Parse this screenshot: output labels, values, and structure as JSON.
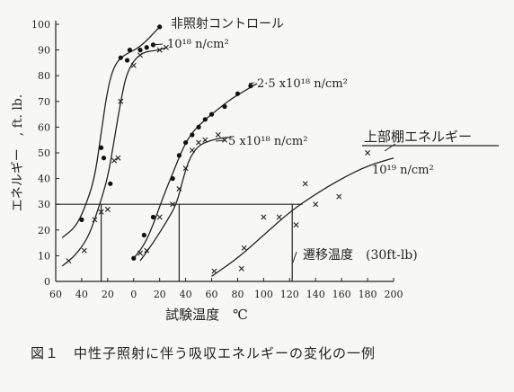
{
  "caption": "図１　中性子照射に伴う吸収エネルギーの変化の一例",
  "chart_data": {
    "type": "line",
    "ylabel": "エネルギー　, ft. lb.",
    "xlabel": "試験温度　℃",
    "x_ticks": [
      "60",
      "40",
      "20",
      "0",
      "20",
      "40",
      "60",
      "80",
      "100",
      "120",
      "140",
      "160",
      "180",
      "200"
    ],
    "x_ticks_value": [
      -60,
      -40,
      -20,
      0,
      20,
      40,
      60,
      80,
      100,
      120,
      140,
      160,
      180,
      200
    ],
    "y_ticks": [
      0,
      10,
      20,
      30,
      40,
      50,
      60,
      70,
      80,
      90,
      100
    ],
    "xlim": [
      -60,
      200
    ],
    "ylim": [
      0,
      100
    ],
    "grid": false,
    "reference_line": {
      "y": 30,
      "label": "遷移温度　(30ft-lb)"
    },
    "upper_shelf_label": "上部棚エネルギー",
    "series": [
      {
        "name": "非照射コントロール",
        "marker": "dot",
        "points": [
          [
            -40,
            24
          ],
          [
            -25,
            52
          ],
          [
            -23,
            48
          ],
          [
            -18,
            38
          ],
          [
            -10,
            87
          ],
          [
            -5,
            86
          ],
          [
            -3,
            90
          ],
          [
            5,
            90
          ],
          [
            10,
            91
          ],
          [
            15,
            92
          ],
          [
            20,
            99
          ]
        ],
        "curve": [
          [
            -55,
            17
          ],
          [
            -45,
            21
          ],
          [
            -38,
            28
          ],
          [
            -30,
            40
          ],
          [
            -25,
            58
          ],
          [
            -20,
            75
          ],
          [
            -15,
            84
          ],
          [
            -8,
            88
          ],
          [
            5,
            91
          ],
          [
            20,
            99
          ]
        ]
      },
      {
        "name": "10¹⁸ n/cm²",
        "marker": "x",
        "points": [
          [
            -50,
            8
          ],
          [
            -38,
            12
          ],
          [
            -30,
            24
          ],
          [
            -25,
            27
          ],
          [
            -20,
            28
          ],
          [
            -15,
            47
          ],
          [
            -12,
            48
          ],
          [
            -10,
            70
          ],
          [
            0,
            84
          ],
          [
            5,
            88
          ],
          [
            20,
            90
          ],
          [
            25,
            91
          ]
        ],
        "curve": [
          [
            -55,
            6
          ],
          [
            -45,
            10
          ],
          [
            -35,
            17
          ],
          [
            -28,
            27
          ],
          [
            -20,
            40
          ],
          [
            -15,
            55
          ],
          [
            -10,
            70
          ],
          [
            -5,
            82
          ],
          [
            5,
            89
          ],
          [
            20,
            90
          ],
          [
            25,
            91
          ]
        ]
      },
      {
        "name": "2.5×10¹⁸ n/cm²",
        "marker": "dot",
        "points": [
          [
            0,
            9
          ],
          [
            8,
            18
          ],
          [
            15,
            25
          ],
          [
            30,
            40
          ],
          [
            35,
            49
          ],
          [
            40,
            54
          ],
          [
            45,
            57
          ],
          [
            50,
            60
          ],
          [
            55,
            63
          ],
          [
            60,
            65
          ],
          [
            70,
            68
          ],
          [
            80,
            73
          ],
          [
            90,
            76
          ]
        ],
        "curve": [
          [
            0,
            9
          ],
          [
            8,
            14
          ],
          [
            15,
            22
          ],
          [
            22,
            32
          ],
          [
            30,
            42
          ],
          [
            38,
            52
          ],
          [
            45,
            58
          ],
          [
            55,
            63
          ],
          [
            65,
            67
          ],
          [
            75,
            71
          ],
          [
            85,
            74
          ],
          [
            95,
            77
          ]
        ]
      },
      {
        "name": "5×10¹⁸ n/cm²",
        "marker": "x",
        "points": [
          [
            5,
            11
          ],
          [
            10,
            12
          ],
          [
            20,
            25
          ],
          [
            30,
            30
          ],
          [
            35,
            36
          ],
          [
            40,
            44
          ],
          [
            45,
            51
          ],
          [
            50,
            54
          ],
          [
            55,
            55
          ],
          [
            65,
            57
          ],
          [
            70,
            55
          ]
        ],
        "curve": [
          [
            5,
            8
          ],
          [
            15,
            15
          ],
          [
            25,
            23
          ],
          [
            33,
            30
          ],
          [
            38,
            40
          ],
          [
            43,
            48
          ],
          [
            50,
            53
          ],
          [
            60,
            55
          ],
          [
            70,
            56
          ],
          [
            75,
            56
          ]
        ]
      },
      {
        "name": "10¹⁹ n/cm²",
        "marker": "x",
        "points": [
          [
            62,
            4
          ],
          [
            83,
            5
          ],
          [
            85,
            13
          ],
          [
            100,
            25
          ],
          [
            112,
            25
          ],
          [
            125,
            22
          ],
          [
            132,
            38
          ],
          [
            140,
            30
          ],
          [
            158,
            33
          ],
          [
            180,
            50
          ]
        ],
        "curve": [
          [
            60,
            2
          ],
          [
            80,
            9
          ],
          [
            100,
            18
          ],
          [
            120,
            27
          ],
          [
            140,
            34
          ],
          [
            160,
            40
          ],
          [
            180,
            45
          ],
          [
            200,
            48
          ]
        ]
      }
    ],
    "annotations": [
      {
        "text": "非照射コントロール",
        "series": 0
      },
      {
        "text": "10¹⁸ n/cm²",
        "series": 1
      },
      {
        "text": "2·5 x10¹⁸ n/cm²",
        "series": 2
      },
      {
        "text": "5 x10¹⁸ n/cm²",
        "series": 3
      },
      {
        "text": "10¹⁹ n/cm²",
        "series": 4
      },
      {
        "text": "上部棚エネルギー"
      },
      {
        "text": "遷移温度　(30ft-lb)"
      }
    ]
  }
}
